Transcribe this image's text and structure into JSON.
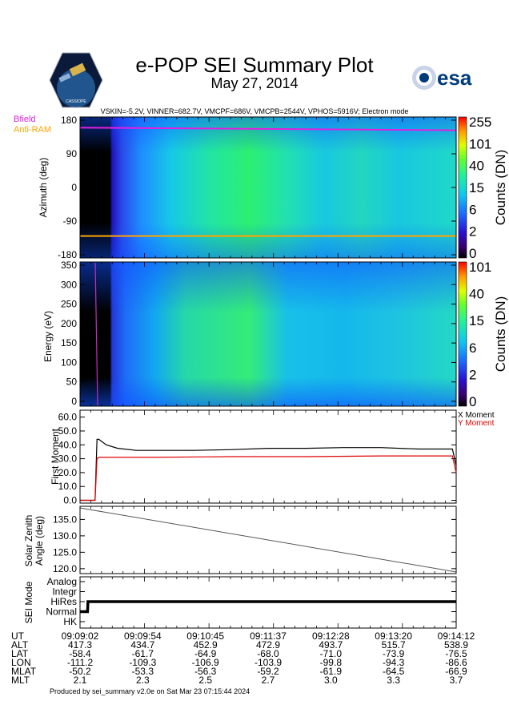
{
  "header": {
    "title": "e-POP SEI Summary Plot",
    "date": "May 27, 2014",
    "params": "VSKIN=-5.2V, VINNER=682.7V, VMCPF=686V, VMCPB=2544V, VPHOS=5916V; Electron mode",
    "esa_logo_text": "esa",
    "epop_logo_text": "CASSIOPE"
  },
  "colors": {
    "bfield": "#e020e0",
    "antiram": "#ffa500",
    "x_moment": "#000000",
    "y_moment": "#e00000"
  },
  "chart_data": [
    {
      "type": "heatmap",
      "name": "azimuth-spectrogram",
      "ylabel": "Azimuth (deg)",
      "ylim": [
        -180,
        180
      ],
      "yticks": [
        "180",
        "90",
        "0",
        "-90",
        "-180"
      ],
      "legend": [
        "Bfield",
        "Anti-RAM"
      ],
      "bfield_line_deg": [
        160,
        153
      ],
      "antiram_line_deg": [
        -130,
        -130
      ],
      "colorbar_label": "Counts (DN)",
      "colorbar_ticks": [
        "255",
        "101",
        "40",
        "15",
        "6",
        "2",
        "0"
      ]
    },
    {
      "type": "heatmap",
      "name": "energy-spectrogram",
      "ylabel": "Energy (eV)",
      "ylim": [
        0,
        350
      ],
      "yticks": [
        "350",
        "300",
        "250",
        "200",
        "150",
        "100",
        "50",
        "0"
      ],
      "colorbar_label": "Counts (DN)",
      "colorbar_ticks": [
        "101",
        "40",
        "15",
        "6",
        "2",
        "0"
      ]
    },
    {
      "type": "line",
      "name": "first-moment",
      "ylabel": "First Moment",
      "ylim": [
        -2,
        65
      ],
      "yticks": [
        "60.0",
        "50.0",
        "40.0",
        "30.0",
        "20.0",
        "10.0",
        "0.0"
      ],
      "series": [
        {
          "name": "X Moment",
          "x": [
            0,
            0.04,
            0.045,
            0.05,
            0.07,
            0.1,
            0.15,
            0.2,
            0.3,
            0.4,
            0.5,
            0.6,
            0.7,
            0.8,
            0.9,
            0.99,
            1.0
          ],
          "values": [
            0,
            0,
            44,
            44,
            40,
            37.5,
            36,
            36,
            36,
            36.5,
            37.5,
            37.5,
            38,
            38,
            37,
            37,
            25
          ]
        },
        {
          "name": "Y Moment",
          "x": [
            0,
            0.04,
            0.045,
            0.05,
            0.1,
            0.2,
            0.4,
            0.6,
            0.8,
            0.99,
            1.0
          ],
          "values": [
            0,
            0,
            30,
            31,
            31,
            31,
            31.5,
            31.5,
            32,
            32,
            20
          ]
        }
      ]
    },
    {
      "type": "line",
      "name": "solar-zenith-angle",
      "ylabel": "Solar Zenith Angle (deg)",
      "ylim": [
        118.5,
        139
      ],
      "yticks": [
        "135.0",
        "130.0",
        "125.0",
        "120.0"
      ],
      "series": [
        {
          "name": "SZA",
          "x": [
            0,
            1
          ],
          "values": [
            138.5,
            119
          ]
        }
      ]
    },
    {
      "type": "line",
      "name": "sei-mode",
      "ylabel": "SEI Mode",
      "yticks": [
        "Analog",
        "Integr",
        "HiRes",
        "Normal",
        "HK"
      ],
      "series": [
        {
          "name": "Mode",
          "x": [
            0,
            0.02,
            0.021,
            1
          ],
          "values": [
            1,
            1,
            2,
            2
          ]
        }
      ]
    }
  ],
  "table": {
    "labels": [
      "UT",
      "ALT",
      "LAT",
      "LON",
      "MLAT",
      "MLT"
    ],
    "columns": [
      [
        "09:09:02",
        "417.3",
        "-58.4",
        "-111.2",
        "-50.2",
        "2.1"
      ],
      [
        "09:09:54",
        "434.7",
        "-61.7",
        "-109.3",
        "-53.3",
        "2.3"
      ],
      [
        "09:10:45",
        "452.9",
        "-64.9",
        "-106.9",
        "-56.3",
        "2.5"
      ],
      [
        "09:11:37",
        "472.9",
        "-68.0",
        "-103.9",
        "-59.2",
        "2.7"
      ],
      [
        "09:12:28",
        "493.7",
        "-71.0",
        "-99.8",
        "-61.9",
        "3.0"
      ],
      [
        "09:13:20",
        "515.7",
        "-73.9",
        "-94.3",
        "-64.5",
        "3.3"
      ],
      [
        "09:14:12",
        "538.9",
        "-76.5",
        "-86.6",
        "-66.9",
        "3.7"
      ]
    ]
  },
  "footer": "Produced by sei_summary v2.0e on Sat Mar 23 07:15:44 2024"
}
